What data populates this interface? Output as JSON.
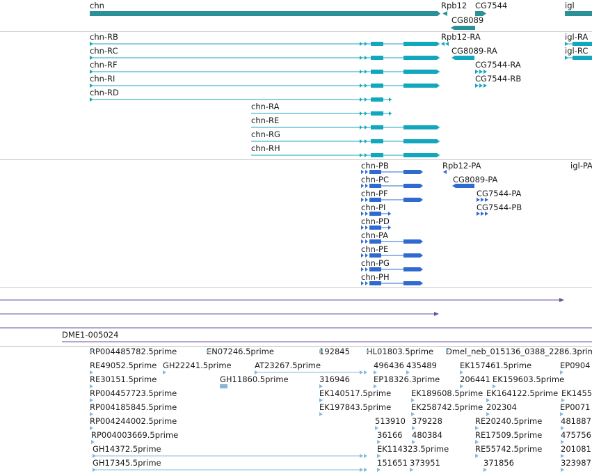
{
  "colors": {
    "gene": "#2a9198",
    "transcript": "#11a7bd",
    "protein": "#2f6ad1",
    "feature": "#6a4d9e",
    "est": "#84b9dd",
    "separator": "#c9c9c9"
  },
  "gene_track": {
    "labels": [
      "chn",
      "Rpb12",
      "CG7544",
      "igl",
      "CG8089"
    ]
  },
  "transcript_track": {
    "labels": [
      "chn-RB",
      "Rpb12-RA",
      "igl-RA",
      "chn-RC",
      "CG8089-RA",
      "igl-RC",
      "chn-RF",
      "CG7544-RA",
      "chn-RI",
      "CG7544-RB",
      "chn-RD",
      "chn-RA",
      "chn-RE",
      "chn-RG",
      "chn-RH"
    ]
  },
  "protein_track": {
    "labels": [
      "chn-PB",
      "Rpb12-PA",
      "igl-PA",
      "chn-PC",
      "CG8089-PA",
      "chn-PF",
      "CG7544-PA",
      "chn-PI",
      "CG7544-PB",
      "chn-PD",
      "chn-PA",
      "chn-PE",
      "chn-PG",
      "chn-PH"
    ]
  },
  "feature_track": {
    "label": "DME1-005024"
  },
  "est_track": {
    "labels": [
      "RP004485782.5prime",
      "EN07246.5prime",
      "192845",
      "HL01803.5prime",
      "Dmel_neb_015136_0388_2286.3prime",
      "RE49052.5prime",
      "GH22241.5prime",
      "AT23267.5prime",
      "496436",
      "435489",
      "EK157461.5prime",
      "EP0904",
      "RE30151.5prime",
      "GH11860.5prime",
      "316946",
      "EP18326.3prime",
      "206441",
      "EK159603.5prime",
      "RP004457723.5prime",
      "EK140517.5prime",
      "EK189608.5prime",
      "EK164122.5prime",
      "EK1455",
      "RP004185845.5prime",
      "EK197843.5prime",
      "EK258742.5prime",
      "202304",
      "EP0071",
      "RP004244002.5prime",
      "513910",
      "379228",
      "RE20240.5prime",
      "481887",
      "RP004003669.5prime",
      "36166",
      "480384",
      "RE17509.5prime",
      "475756",
      "GH14372.5prime",
      "EK114323.5prime",
      "RE55742.5prime",
      "201081",
      "GH17345.5prime",
      "151651",
      "373951",
      "371856",
      "323987"
    ]
  }
}
